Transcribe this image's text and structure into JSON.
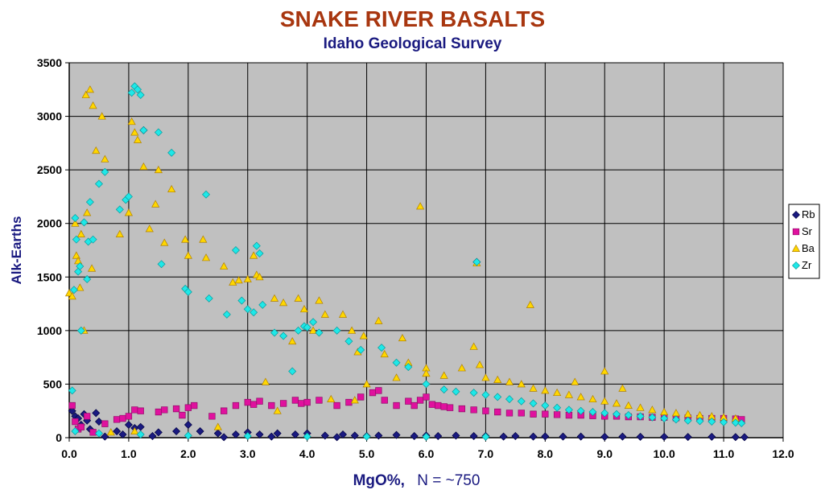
{
  "chart_data": {
    "type": "scatter",
    "title": "SNAKE RIVER BASALTS",
    "subtitle": "Idaho Geological Survey",
    "xlabel_bold": "MgO%,",
    "xlabel_rest": "N = ~750",
    "ylabel": "Alk-Earths",
    "xlim": [
      0,
      12
    ],
    "ylim": [
      0,
      3500
    ],
    "x_ticks": [
      "0.0",
      "1.0",
      "2.0",
      "3.0",
      "4.0",
      "5.0",
      "6.0",
      "7.0",
      "8.0",
      "9.0",
      "10.0",
      "11.0",
      "12.0"
    ],
    "y_ticks": [
      "0",
      "500",
      "1000",
      "1500",
      "2000",
      "2500",
      "3000",
      "3500"
    ],
    "grid": true,
    "legend_position": "right",
    "plot_background": "#c0c0c0",
    "series": [
      {
        "name": "Rb",
        "marker": "diamond",
        "color": "#1a1a80",
        "points": [
          [
            0.05,
            250
          ],
          [
            0.1,
            200
          ],
          [
            0.15,
            180
          ],
          [
            0.2,
            120
          ],
          [
            0.25,
            220
          ],
          [
            0.3,
            160
          ],
          [
            0.35,
            80
          ],
          [
            0.45,
            230
          ],
          [
            0.5,
            150
          ],
          [
            0.8,
            60
          ],
          [
            0.9,
            30
          ],
          [
            1.0,
            120
          ],
          [
            1.1,
            90
          ],
          [
            1.2,
            100
          ],
          [
            1.25,
            2870
          ],
          [
            1.5,
            50
          ],
          [
            1.8,
            60
          ],
          [
            2.0,
            120
          ],
          [
            2.2,
            60
          ],
          [
            2.5,
            40
          ],
          [
            2.8,
            30
          ],
          [
            3.0,
            50
          ],
          [
            3.2,
            30
          ],
          [
            3.5,
            40
          ],
          [
            3.8,
            30
          ],
          [
            4.0,
            40
          ],
          [
            4.3,
            20
          ],
          [
            4.6,
            30
          ],
          [
            4.8,
            20
          ],
          [
            5.0,
            15
          ],
          [
            5.2,
            20
          ],
          [
            5.5,
            25
          ],
          [
            5.8,
            15
          ],
          [
            6.0,
            20
          ],
          [
            6.2,
            15
          ],
          [
            6.5,
            20
          ],
          [
            6.8,
            15
          ],
          [
            6.85,
            1640
          ],
          [
            7.0,
            15
          ],
          [
            7.3,
            10
          ],
          [
            7.5,
            15
          ],
          [
            7.8,
            10
          ],
          [
            8.0,
            12
          ],
          [
            8.3,
            10
          ],
          [
            8.6,
            10
          ],
          [
            9.0,
            8
          ],
          [
            9.3,
            10
          ],
          [
            9.6,
            8
          ],
          [
            10.0,
            8
          ],
          [
            10.4,
            7
          ],
          [
            10.8,
            8
          ],
          [
            11.2,
            6
          ],
          [
            11.35,
            5
          ],
          [
            0.6,
            10
          ],
          [
            1.4,
            15
          ],
          [
            2.6,
            5
          ],
          [
            3.4,
            10
          ],
          [
            4.5,
            5
          ]
        ]
      },
      {
        "name": "Sr",
        "marker": "square",
        "color": "#e0119e",
        "points": [
          [
            0.05,
            300
          ],
          [
            0.1,
            150
          ],
          [
            0.15,
            80
          ],
          [
            0.2,
            100
          ],
          [
            0.3,
            200
          ],
          [
            0.4,
            50
          ],
          [
            0.6,
            130
          ],
          [
            0.8,
            170
          ],
          [
            0.9,
            180
          ],
          [
            1.0,
            200
          ],
          [
            1.1,
            260
          ],
          [
            1.2,
            250
          ],
          [
            1.5,
            240
          ],
          [
            1.6,
            260
          ],
          [
            1.8,
            270
          ],
          [
            1.9,
            210
          ],
          [
            2.0,
            280
          ],
          [
            2.1,
            300
          ],
          [
            2.4,
            200
          ],
          [
            2.6,
            250
          ],
          [
            2.8,
            300
          ],
          [
            3.0,
            330
          ],
          [
            3.1,
            310
          ],
          [
            3.2,
            340
          ],
          [
            3.4,
            300
          ],
          [
            3.6,
            320
          ],
          [
            3.8,
            350
          ],
          [
            3.9,
            320
          ],
          [
            4.0,
            330
          ],
          [
            4.2,
            350
          ],
          [
            4.5,
            300
          ],
          [
            4.7,
            330
          ],
          [
            4.9,
            380
          ],
          [
            5.1,
            420
          ],
          [
            5.2,
            440
          ],
          [
            5.3,
            350
          ],
          [
            5.5,
            300
          ],
          [
            5.7,
            340
          ],
          [
            5.8,
            300
          ],
          [
            5.9,
            350
          ],
          [
            6.0,
            380
          ],
          [
            6.1,
            310
          ],
          [
            6.2,
            300
          ],
          [
            6.3,
            290
          ],
          [
            6.4,
            280
          ],
          [
            6.6,
            270
          ],
          [
            6.8,
            260
          ],
          [
            7.0,
            250
          ],
          [
            7.2,
            240
          ],
          [
            7.4,
            230
          ],
          [
            7.6,
            230
          ],
          [
            7.8,
            220
          ],
          [
            8.0,
            220
          ],
          [
            8.2,
            215
          ],
          [
            8.4,
            210
          ],
          [
            8.6,
            210
          ],
          [
            8.8,
            205
          ],
          [
            9.0,
            200
          ],
          [
            9.2,
            200
          ],
          [
            9.4,
            195
          ],
          [
            9.6,
            195
          ],
          [
            9.8,
            190
          ],
          [
            10.0,
            190
          ],
          [
            10.2,
            185
          ],
          [
            10.4,
            185
          ],
          [
            10.6,
            180
          ],
          [
            10.8,
            180
          ],
          [
            11.0,
            180
          ],
          [
            11.2,
            175
          ],
          [
            11.3,
            170
          ]
        ]
      },
      {
        "name": "Ba",
        "marker": "triangle",
        "color": "#ffd700",
        "points": [
          [
            0.0,
            1350
          ],
          [
            0.05,
            1320
          ],
          [
            0.1,
            2000
          ],
          [
            0.12,
            1700
          ],
          [
            0.15,
            1650
          ],
          [
            0.18,
            1400
          ],
          [
            0.2,
            1900
          ],
          [
            0.25,
            1000
          ],
          [
            0.28,
            3200
          ],
          [
            0.3,
            2100
          ],
          [
            0.35,
            3250
          ],
          [
            0.38,
            1580
          ],
          [
            0.4,
            3100
          ],
          [
            0.45,
            2680
          ],
          [
            0.55,
            3000
          ],
          [
            0.6,
            2600
          ],
          [
            0.85,
            1900
          ],
          [
            1.0,
            2100
          ],
          [
            1.05,
            2950
          ],
          [
            1.1,
            2850
          ],
          [
            1.15,
            2780
          ],
          [
            1.25,
            2530
          ],
          [
            1.35,
            1950
          ],
          [
            1.45,
            2180
          ],
          [
            1.5,
            2500
          ],
          [
            1.6,
            1820
          ],
          [
            1.72,
            2320
          ],
          [
            1.95,
            1850
          ],
          [
            2.0,
            1700
          ],
          [
            2.25,
            1850
          ],
          [
            2.3,
            1680
          ],
          [
            2.6,
            1600
          ],
          [
            2.75,
            1450
          ],
          [
            2.85,
            1470
          ],
          [
            3.0,
            1480
          ],
          [
            3.1,
            1700
          ],
          [
            3.15,
            1520
          ],
          [
            3.2,
            1500
          ],
          [
            3.3,
            520
          ],
          [
            3.45,
            1300
          ],
          [
            3.6,
            1260
          ],
          [
            3.75,
            900
          ],
          [
            3.85,
            1300
          ],
          [
            3.95,
            1200
          ],
          [
            4.1,
            1000
          ],
          [
            4.2,
            1280
          ],
          [
            4.3,
            1150
          ],
          [
            4.6,
            1150
          ],
          [
            4.75,
            1000
          ],
          [
            4.85,
            800
          ],
          [
            4.95,
            950
          ],
          [
            5.2,
            1090
          ],
          [
            5.3,
            780
          ],
          [
            5.6,
            930
          ],
          [
            5.7,
            700
          ],
          [
            5.9,
            2160
          ],
          [
            6.0,
            650
          ],
          [
            6.85,
            1630
          ],
          [
            7.75,
            1240
          ],
          [
            0.7,
            50
          ],
          [
            1.1,
            60
          ],
          [
            2.5,
            100
          ],
          [
            3.5,
            250
          ],
          [
            4.4,
            360
          ],
          [
            4.8,
            350
          ],
          [
            5.0,
            500
          ],
          [
            5.5,
            560
          ],
          [
            6.0,
            600
          ],
          [
            6.3,
            580
          ],
          [
            6.6,
            650
          ],
          [
            6.9,
            680
          ],
          [
            7.0,
            560
          ],
          [
            7.2,
            540
          ],
          [
            7.4,
            520
          ],
          [
            7.6,
            500
          ],
          [
            7.8,
            460
          ],
          [
            8.0,
            440
          ],
          [
            8.2,
            420
          ],
          [
            8.4,
            400
          ],
          [
            8.6,
            380
          ],
          [
            8.8,
            360
          ],
          [
            9.0,
            620
          ],
          [
            9.0,
            340
          ],
          [
            9.2,
            320
          ],
          [
            9.4,
            300
          ],
          [
            9.6,
            280
          ],
          [
            9.8,
            260
          ],
          [
            10.0,
            240
          ],
          [
            10.2,
            230
          ],
          [
            10.4,
            220
          ],
          [
            10.6,
            210
          ],
          [
            10.8,
            200
          ],
          [
            11.0,
            190
          ],
          [
            11.2,
            180
          ],
          [
            6.8,
            850
          ],
          [
            8.5,
            520
          ],
          [
            9.3,
            460
          ]
        ]
      },
      {
        "name": "Zr",
        "marker": "diamond",
        "color": "#1ee8e8",
        "points": [
          [
            0.05,
            440
          ],
          [
            0.08,
            1380
          ],
          [
            0.1,
            2050
          ],
          [
            0.12,
            1850
          ],
          [
            0.15,
            1550
          ],
          [
            0.18,
            1600
          ],
          [
            0.2,
            1000
          ],
          [
            0.25,
            2010
          ],
          [
            0.3,
            1480
          ],
          [
            0.32,
            1830
          ],
          [
            0.35,
            2200
          ],
          [
            0.4,
            1850
          ],
          [
            0.5,
            2370
          ],
          [
            0.6,
            2480
          ],
          [
            0.85,
            2130
          ],
          [
            0.95,
            2220
          ],
          [
            1.0,
            2250
          ],
          [
            1.05,
            3220
          ],
          [
            1.1,
            3280
          ],
          [
            1.15,
            3250
          ],
          [
            1.2,
            3200
          ],
          [
            1.25,
            2870
          ],
          [
            1.5,
            2850
          ],
          [
            1.55,
            1620
          ],
          [
            1.72,
            2660
          ],
          [
            1.95,
            1390
          ],
          [
            2.0,
            1360
          ],
          [
            2.3,
            2270
          ],
          [
            2.35,
            1300
          ],
          [
            2.65,
            1150
          ],
          [
            2.8,
            1750
          ],
          [
            2.9,
            1280
          ],
          [
            3.0,
            1200
          ],
          [
            3.1,
            1170
          ],
          [
            3.15,
            1790
          ],
          [
            3.2,
            1720
          ],
          [
            3.25,
            1240
          ],
          [
            3.45,
            980
          ],
          [
            3.6,
            950
          ],
          [
            3.75,
            620
          ],
          [
            3.85,
            1000
          ],
          [
            3.95,
            1040
          ],
          [
            4.0,
            1030
          ],
          [
            4.1,
            1080
          ],
          [
            4.2,
            980
          ],
          [
            4.5,
            1000
          ],
          [
            4.7,
            900
          ],
          [
            4.9,
            820
          ],
          [
            5.25,
            840
          ],
          [
            5.5,
            700
          ],
          [
            5.7,
            660
          ],
          [
            6.0,
            500
          ],
          [
            6.3,
            450
          ],
          [
            6.5,
            430
          ],
          [
            6.8,
            420
          ],
          [
            7.0,
            400
          ],
          [
            7.2,
            380
          ],
          [
            7.4,
            360
          ],
          [
            7.6,
            340
          ],
          [
            7.8,
            320
          ],
          [
            8.0,
            300
          ],
          [
            8.2,
            280
          ],
          [
            8.4,
            260
          ],
          [
            8.6,
            250
          ],
          [
            8.8,
            240
          ],
          [
            9.0,
            230
          ],
          [
            9.2,
            220
          ],
          [
            9.4,
            210
          ],
          [
            9.6,
            200
          ],
          [
            9.8,
            190
          ],
          [
            10.0,
            180
          ],
          [
            10.2,
            170
          ],
          [
            10.4,
            160
          ],
          [
            10.6,
            155
          ],
          [
            10.8,
            150
          ],
          [
            11.0,
            145
          ],
          [
            11.2,
            140
          ],
          [
            11.3,
            135
          ],
          [
            0.1,
            60
          ],
          [
            0.5,
            40
          ],
          [
            1.2,
            30
          ],
          [
            2.0,
            20
          ],
          [
            3.0,
            15
          ],
          [
            4.0,
            10
          ],
          [
            5.0,
            10
          ],
          [
            6.0,
            8
          ],
          [
            7.0,
            8
          ],
          [
            6.85,
            1640
          ]
        ]
      }
    ]
  }
}
